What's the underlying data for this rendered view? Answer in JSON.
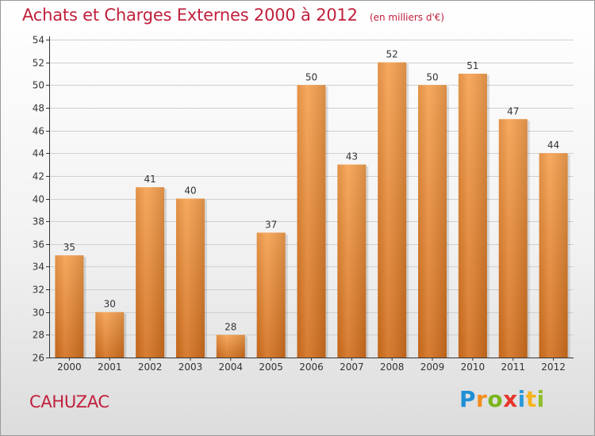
{
  "header": {
    "title": "Achats et Charges Externes 2000 à 2012",
    "subtitle": "(en milliers d'€)"
  },
  "footer": {
    "commune": "CAHUZAC",
    "brand": [
      "P",
      "r",
      "o",
      "x",
      "i",
      "t",
      "i"
    ]
  },
  "colors": {
    "title": "#c0203c",
    "bar_light": "#f6a04f",
    "bar_dark": "#d26f1d",
    "axis": "#333333",
    "grid": "#cfcfcf"
  },
  "chart_data": {
    "type": "bar",
    "title": "Achats et Charges Externes 2000 à 2012",
    "subtitle": "(en milliers d'€)",
    "xlabel": "",
    "ylabel": "",
    "categories": [
      "2000",
      "2001",
      "2002",
      "2003",
      "2004",
      "2005",
      "2006",
      "2007",
      "2008",
      "2009",
      "2010",
      "2011",
      "2012"
    ],
    "values": [
      35,
      30,
      41,
      40,
      28,
      37,
      50,
      43,
      52,
      50,
      51,
      47,
      44
    ],
    "ylim": [
      26,
      54
    ],
    "yticks": [
      26,
      28,
      30,
      32,
      34,
      36,
      38,
      40,
      42,
      44,
      46,
      48,
      50,
      52,
      54
    ],
    "grid": true,
    "data_labels": true
  }
}
